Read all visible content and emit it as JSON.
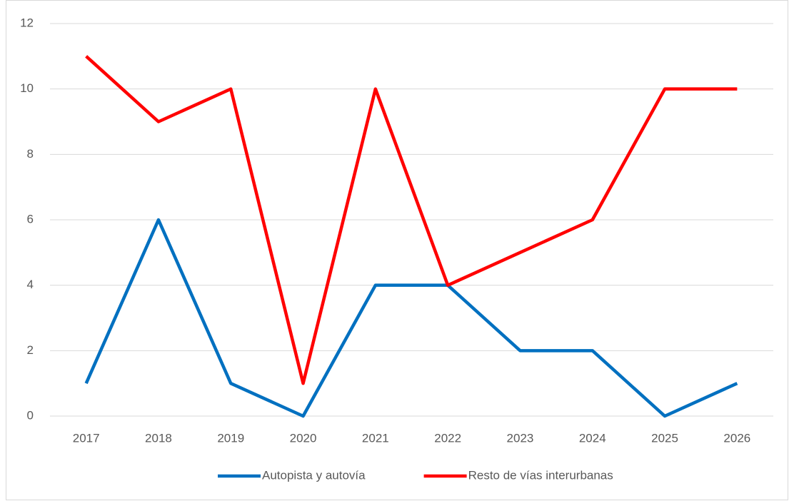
{
  "chart_data": {
    "type": "line",
    "categories": [
      "2017",
      "2018",
      "2019",
      "2020",
      "2021",
      "2022",
      "2023",
      "2024",
      "2025",
      "2026"
    ],
    "series": [
      {
        "name": "Autopista y autovía",
        "color": "#0070c0",
        "values": [
          1,
          6,
          1,
          0,
          4,
          4,
          2,
          2,
          0,
          1
        ]
      },
      {
        "name": "Resto de vías interurbanas",
        "color": "#ff0000",
        "values": [
          11,
          9,
          10,
          1,
          10,
          4,
          5,
          6,
          10,
          10
        ]
      }
    ],
    "ylim": [
      0,
      12
    ],
    "yticks": [
      0,
      2,
      4,
      6,
      8,
      10,
      12
    ],
    "grid": true,
    "legend": "bottom"
  }
}
